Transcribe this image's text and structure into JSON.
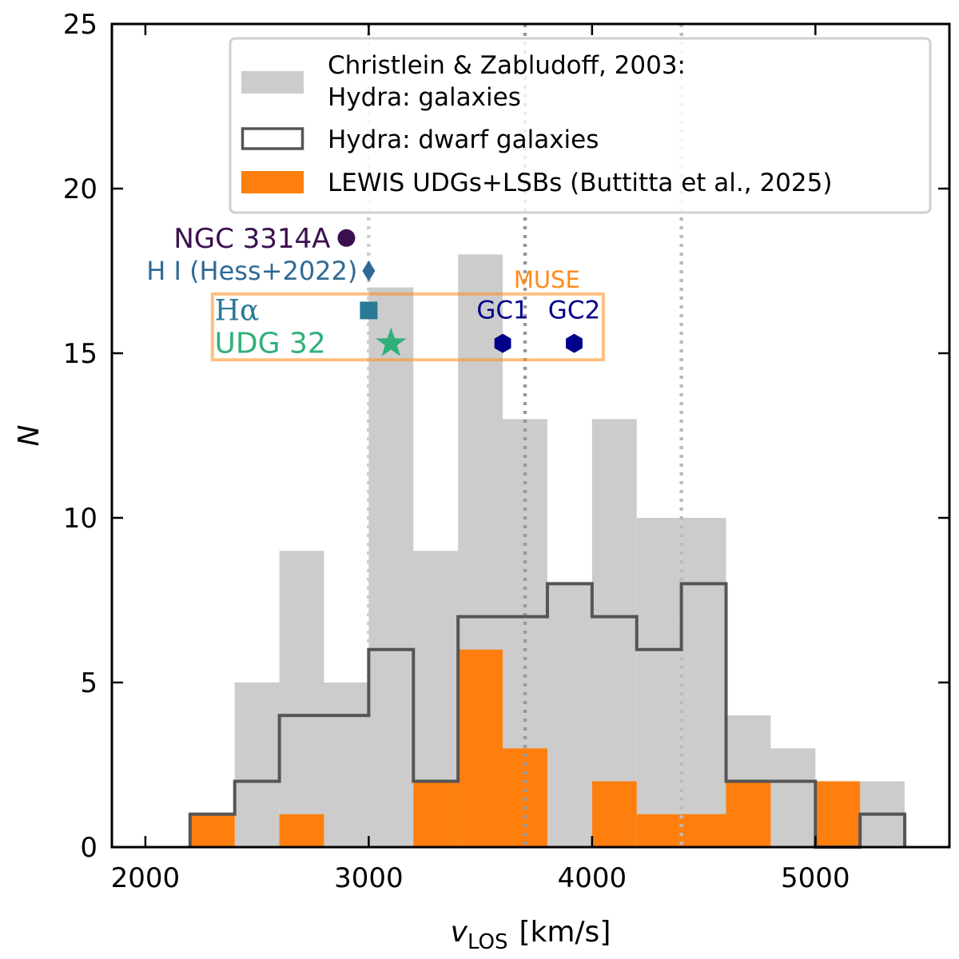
{
  "chart_data": {
    "type": "histogram",
    "xlabel": "v",
    "xlabel_sub": "LOS",
    "xlabel_unit": "[km/s]",
    "ylabel": "N",
    "xlim": [
      1850,
      5600
    ],
    "ylim": [
      0,
      25
    ],
    "xticks": [
      2000,
      3000,
      4000,
      5000
    ],
    "yticks": [
      0,
      5,
      10,
      15,
      20,
      25
    ],
    "bin_width": 200,
    "series": [
      {
        "name": "Christlein & Zabludoff, 2003: Hydra: galaxies",
        "style": "filled",
        "color": "#cccccc",
        "bin_starts": [
          2200,
          2400,
          2600,
          2800,
          3000,
          3200,
          3400,
          3600,
          3800,
          4000,
          4200,
          4400,
          4600,
          4800,
          5000,
          5200
        ],
        "values": [
          1,
          5,
          9,
          5,
          17,
          9,
          18,
          13,
          8,
          13,
          10,
          10,
          4,
          3,
          2,
          2
        ]
      },
      {
        "name": "Hydra: dwarf galaxies",
        "style": "step",
        "color": "#555555",
        "bin_starts": [
          2200,
          2400,
          2600,
          2800,
          3000,
          3200,
          3400,
          3600,
          3800,
          4000,
          4200,
          4400,
          4600,
          4800,
          5000,
          5200
        ],
        "values": [
          1,
          2,
          4,
          4,
          6,
          2,
          7,
          7,
          8,
          7,
          6,
          8,
          2,
          2,
          0,
          1
        ]
      },
      {
        "name": "LEWIS UDGs+LSBs (Buttitta et al., 2025)",
        "style": "filled",
        "color": "#ff7f0e",
        "bin_starts": [
          2200,
          2400,
          2600,
          2800,
          3000,
          3200,
          3400,
          3600,
          3800,
          4000,
          4200,
          4400,
          4600,
          4800,
          5000,
          5200
        ],
        "values": [
          1,
          0,
          1,
          0,
          0,
          2,
          6,
          3,
          0,
          2,
          1,
          1,
          2,
          0,
          2,
          0
        ]
      }
    ],
    "legend": {
      "position": "top-right",
      "entries": [
        {
          "label_line1": "Christlein & Zabludoff, 2003:",
          "label_line2": "Hydra: galaxies"
        },
        {
          "label_line1": "Hydra: dwarf galaxies"
        },
        {
          "label_line1": "LEWIS UDGs+LSBs (Buttitta et al., 2025)"
        }
      ]
    },
    "vlines": [
      {
        "x": 3000,
        "color": "#cccccc"
      },
      {
        "x": 3700,
        "color": "#999999"
      },
      {
        "x": 4400,
        "color": "#bbbbbb"
      }
    ],
    "points": [
      {
        "label": "NGC 3314A",
        "x": 2900,
        "y": 18.5,
        "marker": "circle",
        "color": "#3b0f4f"
      },
      {
        "label": "H I (Hess+2022)",
        "x": 3000,
        "y": 17.5,
        "marker": "diamond",
        "color": "#2f6a96"
      },
      {
        "label": "Hα",
        "x": 3000,
        "y": 16.3,
        "marker": "square",
        "color": "#2a7a96"
      },
      {
        "label": "UDG 32",
        "x": 3100,
        "y": 15.3,
        "marker": "star",
        "color": "#2fb07a"
      },
      {
        "label": "GC1",
        "x": 3600,
        "y": 15.3,
        "marker": "hexagon",
        "color": "#00008b"
      },
      {
        "label": "GC2",
        "x": 3920,
        "y": 15.3,
        "marker": "hexagon",
        "color": "#00008b"
      }
    ],
    "annotations": {
      "muse_label": "MUSE",
      "muse_color": "#ff8c1a",
      "muse_box": {
        "x_min": 2300,
        "x_max": 4050,
        "y_min": 14.8,
        "y_max": 16.8
      }
    }
  }
}
